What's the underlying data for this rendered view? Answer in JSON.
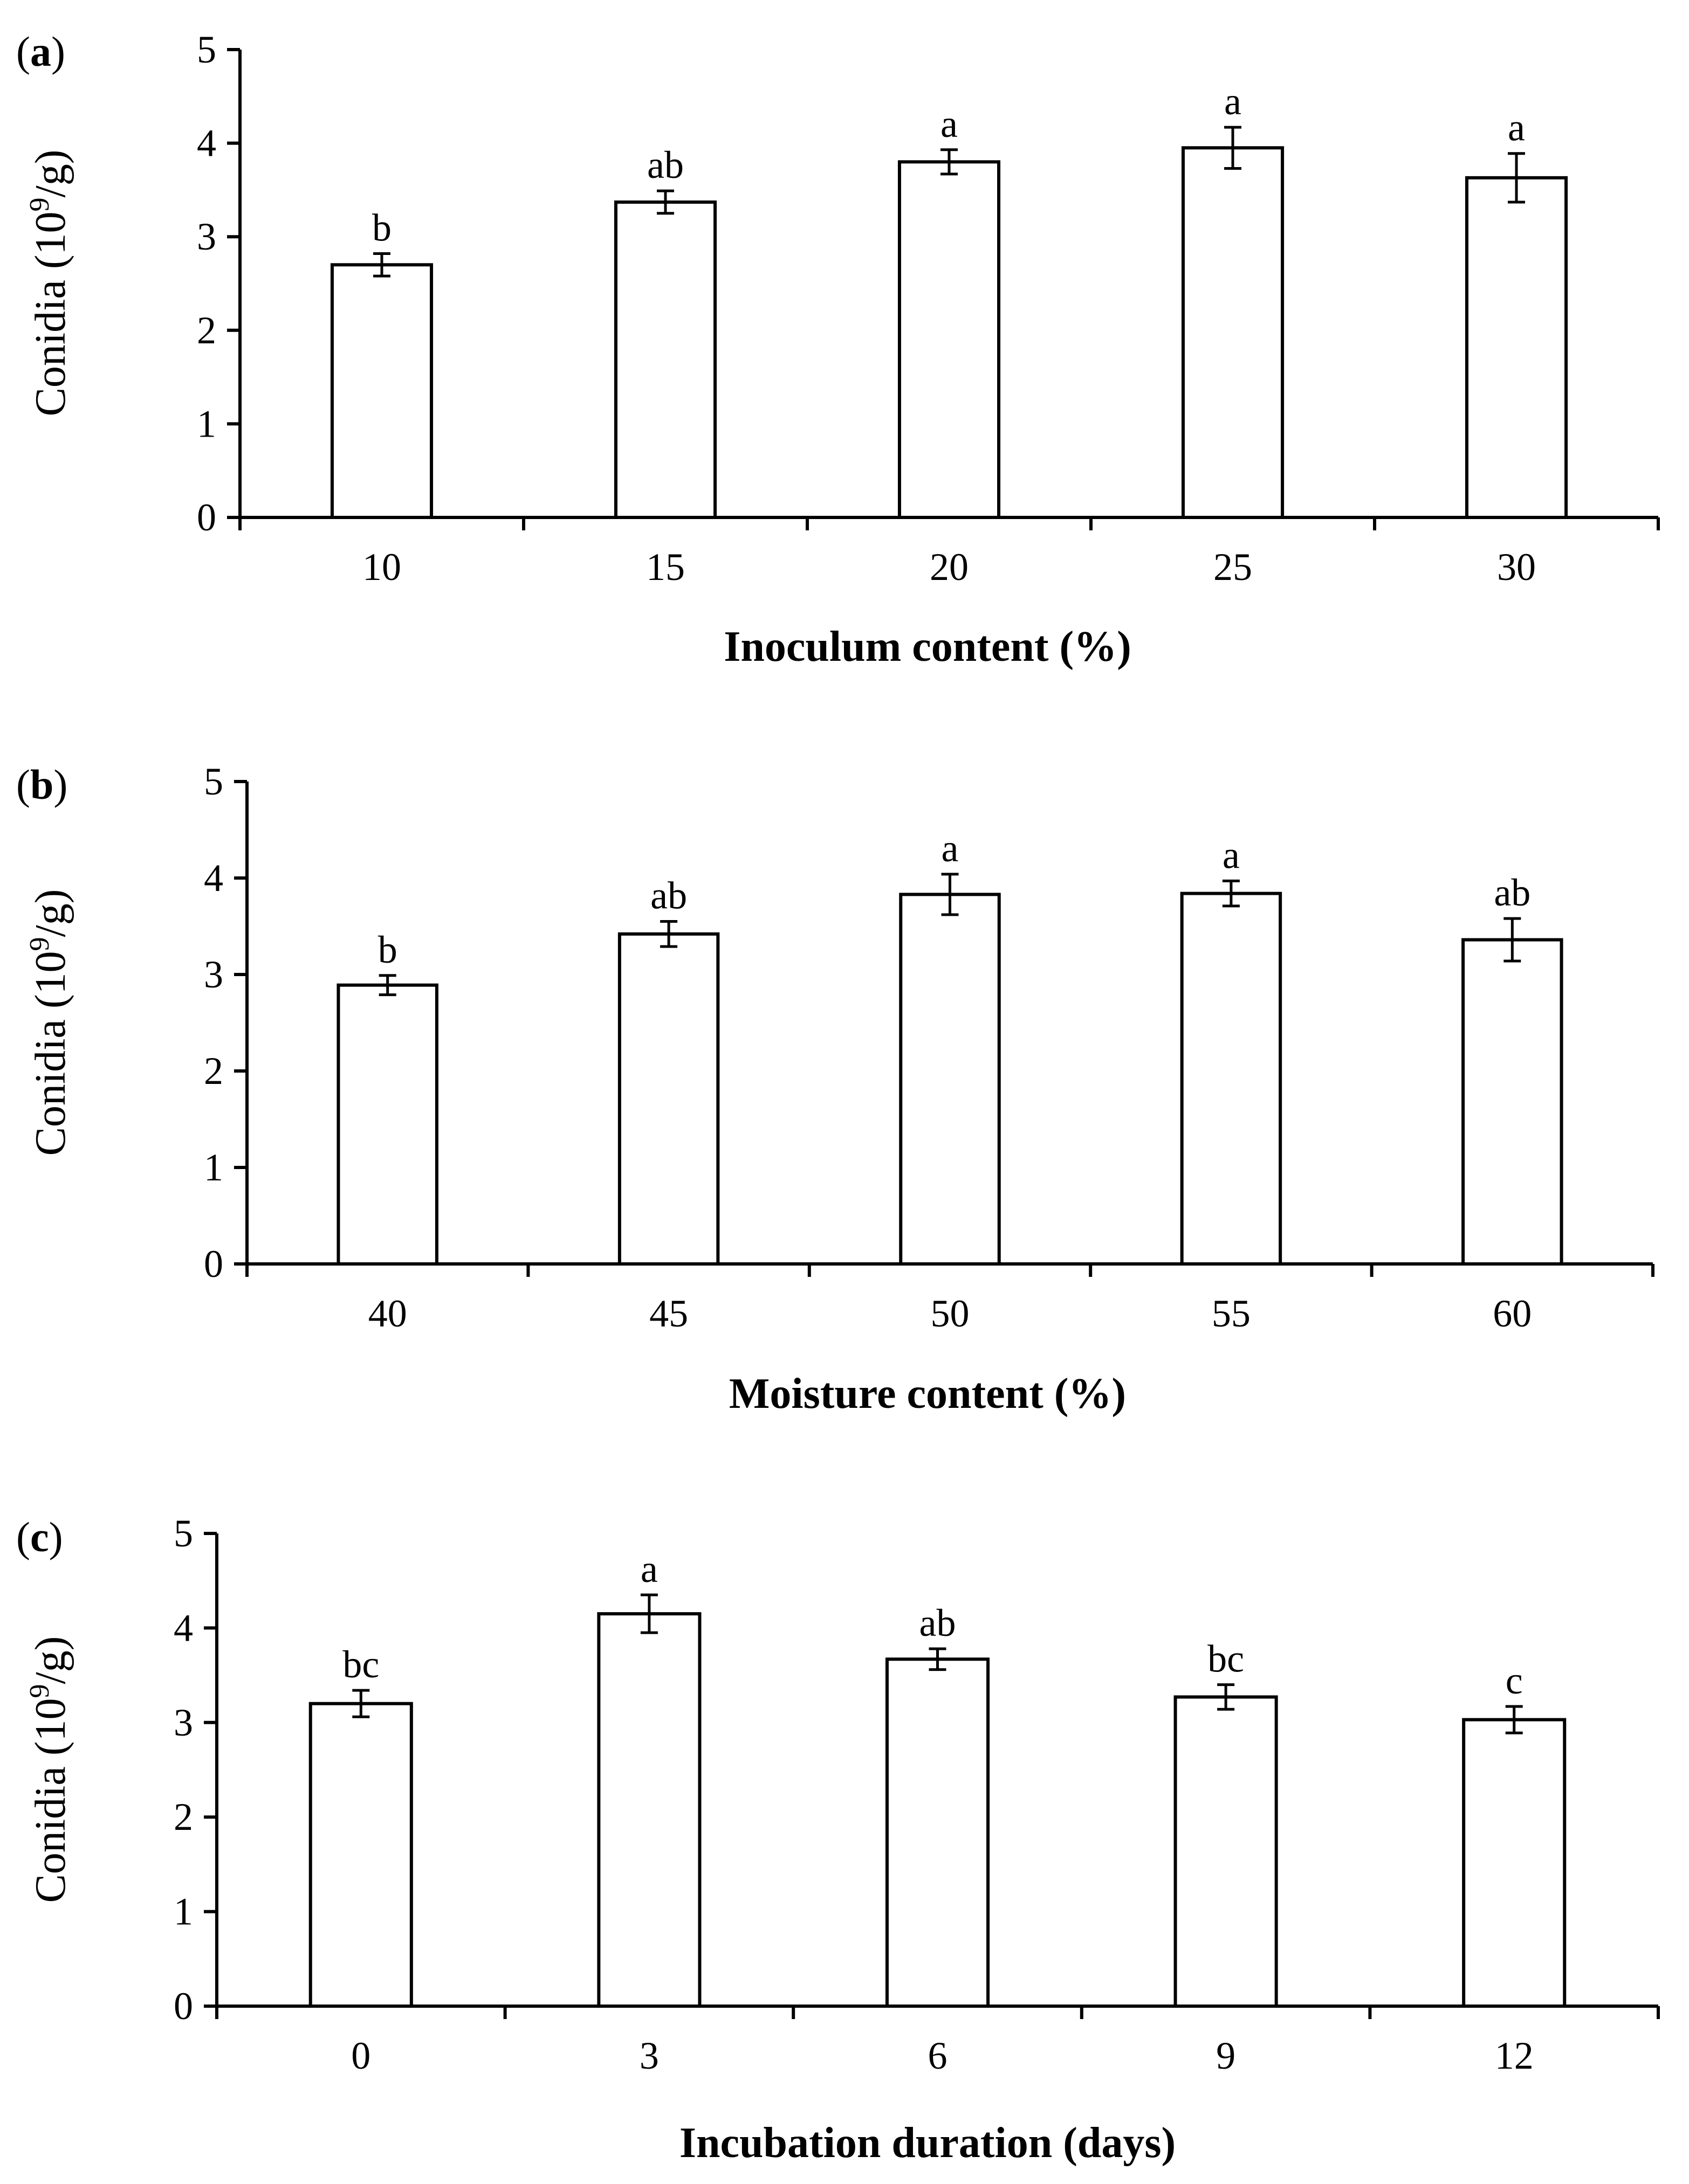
{
  "chart_data": [
    {
      "type": "bar",
      "panel_label": "a",
      "categories": [
        "10",
        "15",
        "20",
        "25",
        "30"
      ],
      "values": [
        2.7,
        3.37,
        3.8,
        3.95,
        3.63
      ],
      "errors": [
        0.12,
        0.12,
        0.13,
        0.22,
        0.26
      ],
      "significance": [
        "b",
        "ab",
        "a",
        "a",
        "a"
      ],
      "xlabel": "Inoculum content (%)",
      "ylabel": {
        "main": "Conidia (10",
        "sup": "9",
        "end": "/g)"
      },
      "ylim": [
        0,
        5
      ],
      "yticks": [
        "0",
        "1",
        "2",
        "3",
        "4",
        "5"
      ],
      "grid": false,
      "bar_fill": "#ffffff",
      "bar_stroke": "#000000"
    },
    {
      "type": "bar",
      "panel_label": "b",
      "categories": [
        "40",
        "45",
        "50",
        "55",
        "60"
      ],
      "values": [
        2.89,
        3.42,
        3.83,
        3.84,
        3.36
      ],
      "errors": [
        0.1,
        0.13,
        0.21,
        0.13,
        0.22
      ],
      "significance": [
        "b",
        "ab",
        "a",
        "a",
        "ab"
      ],
      "xlabel": "Moisture content (%)",
      "ylabel": {
        "main": "Conidia (10",
        "sup": "9",
        "end": "/g)"
      },
      "ylim": [
        0,
        5
      ],
      "yticks": [
        "0",
        "1",
        "2",
        "3",
        "4",
        "5"
      ],
      "grid": false,
      "bar_fill": "#ffffff",
      "bar_stroke": "#000000"
    },
    {
      "type": "bar",
      "panel_label": "c",
      "categories": [
        "0",
        "3",
        "6",
        "9",
        "12"
      ],
      "values": [
        3.2,
        4.15,
        3.67,
        3.27,
        3.03
      ],
      "errors": [
        0.14,
        0.2,
        0.11,
        0.13,
        0.14
      ],
      "significance": [
        "bc",
        "a",
        "ab",
        "bc",
        "c"
      ],
      "xlabel": "Incubation duration (days)",
      "ylabel": {
        "main": "Conidia (10",
        "sup": "9",
        "end": "/g)"
      },
      "ylim": [
        0,
        5
      ],
      "yticks": [
        "0",
        "1",
        "2",
        "3",
        "4",
        "5"
      ],
      "grid": false,
      "bar_fill": "#ffffff",
      "bar_stroke": "#000000"
    }
  ]
}
